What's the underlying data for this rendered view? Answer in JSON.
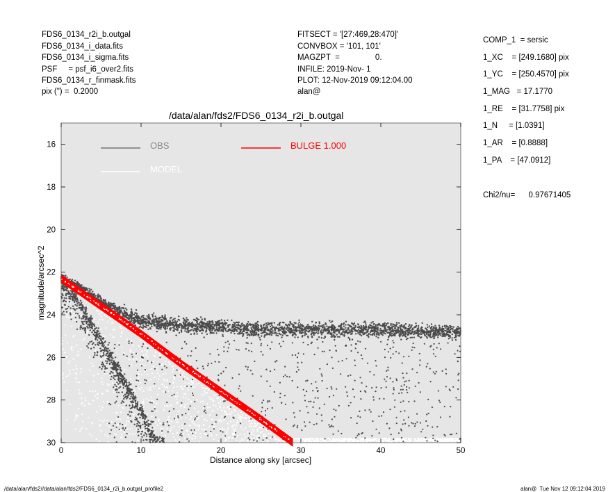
{
  "header_left": [
    "FDS6_0134_r2i_b.outgal",
    "FDS6_0134_i_data.fits",
    "FDS6_0134_i_sigma.fits",
    "PSF     = psf_i6_over2.fits",
    "FDS6_0134_r_finmask.fits",
    "pix (\") =  0.2000"
  ],
  "header_mid": [
    "FITSECT = '[27:469,28:470]'",
    "CONVBOX = '101, 101'",
    "MAGZPT  =                0.",
    "INFILE: 2019-Nov- 1",
    "PLOT: 12-Nov-2019 09:12:04.00",
    "alan@"
  ],
  "params": [
    "COMP_1  = sersic",
    "1_XC    = [249.1680] pix",
    "1_YC    = [250.4570] pix",
    "1_MAG   = 17.1770",
    "1_RE    = [31.7758] pix",
    "1_N     = [1.0391]",
    "1_AR    = [0.8888]",
    "1_PA    = [47.0912]"
  ],
  "chi2": "Chi2/nu=      0.97671405",
  "footer_left": "/data/alan/fds2//data/alan/fds2/FDS6_0134_r2i_b.outgal_profile2",
  "footer_right": "alan@  Tue Nov 12 09:12:04 2019",
  "colors": {
    "plot_bg": "#e6e6e6",
    "obs": "#4a4a4a",
    "model": "#ffffff",
    "bulge": "#ff0000"
  },
  "chart_data": {
    "type": "scatter",
    "title": "/data/alan/fds2/FDS6_0134_r2i_b.outgal",
    "xlabel": "Distance along sky [arcsec]",
    "ylabel": "magnitude/arcsec^2",
    "xlim": [
      0,
      50
    ],
    "ylim": [
      30,
      15
    ],
    "x_inverted": false,
    "y_inverted": true,
    "xticks": [
      "0",
      "10",
      "20",
      "30",
      "40",
      "50"
    ],
    "yticks": [
      "16",
      "18",
      "20",
      "22",
      "24",
      "26",
      "28",
      "30"
    ],
    "grid": false,
    "legend_position": "top",
    "series": [
      {
        "name": "OBS",
        "type": "scatter",
        "color": "#4a4a4a",
        "note": "dense dark scatter: upper envelope rises from ~22.3 at x=0 to ~24.3 by x=8, flat ~24.7 to x=50; lower envelope falls steeply from ~22.5 to below 30 by x~12",
        "upper_branch": {
          "x": [
            0,
            2,
            4,
            6,
            8,
            10,
            15,
            20,
            25,
            30,
            35,
            40,
            45,
            50
          ],
          "y": [
            22.3,
            22.6,
            23.1,
            23.6,
            24.0,
            24.3,
            24.5,
            24.6,
            24.7,
            24.7,
            24.7,
            24.7,
            24.8,
            24.8
          ]
        },
        "lower_branch": {
          "x": [
            0,
            2,
            4,
            6,
            8,
            10,
            12
          ],
          "y": [
            22.5,
            23.3,
            24.6,
            25.9,
            27.2,
            28.6,
            30.0
          ]
        }
      },
      {
        "name": "MODEL",
        "type": "scatter",
        "color": "#ffffff",
        "note": "white points filling the area below the bulge line, roughly 24.5 to 30",
        "x": [
          0,
          5,
          10,
          20,
          30,
          40,
          50
        ],
        "y": [
          22.3,
          23.7,
          24.8,
          25.5,
          26.0,
          26.2,
          26.3
        ]
      },
      {
        "name": "BULGE  1.000",
        "type": "line",
        "color": "#ff0000",
        "x": [
          0,
          5,
          10,
          15,
          20,
          25,
          29
        ],
        "y": [
          22.3,
          23.6,
          24.9,
          26.3,
          27.6,
          28.9,
          30.0
        ]
      }
    ]
  }
}
